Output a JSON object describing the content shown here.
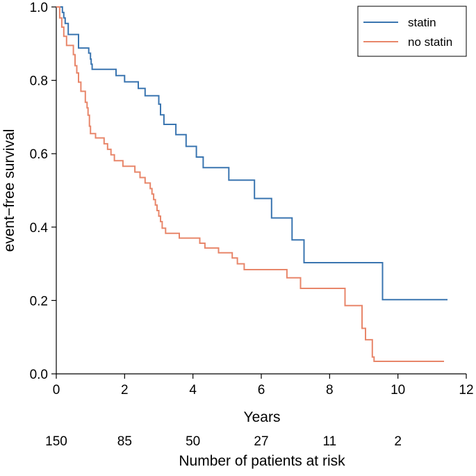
{
  "chart_data": {
    "type": "line",
    "subtype": "kaplan-meier step",
    "xlabel": "Years",
    "ylabel": "event−free survival",
    "xlim": [
      0,
      12
    ],
    "ylim": [
      0,
      1
    ],
    "xticks": [
      "0",
      "2",
      "4",
      "6",
      "8",
      "10",
      "12"
    ],
    "yticks": [
      "0.0",
      "0.2",
      "0.4",
      "0.6",
      "0.8",
      "1.0"
    ],
    "grid": false,
    "legend_position": "top-right",
    "series": [
      {
        "name": "statin",
        "color": "#3a75b0",
        "steps": [
          [
            0,
            1.0
          ],
          [
            0.18,
            0.985
          ],
          [
            0.22,
            0.97
          ],
          [
            0.26,
            0.955
          ],
          [
            0.35,
            0.925
          ],
          [
            0.65,
            0.888
          ],
          [
            0.95,
            0.874
          ],
          [
            1.0,
            0.858
          ],
          [
            1.02,
            0.844
          ],
          [
            1.05,
            0.83
          ],
          [
            1.75,
            0.813
          ],
          [
            2.0,
            0.796
          ],
          [
            2.4,
            0.778
          ],
          [
            2.6,
            0.758
          ],
          [
            3.0,
            0.735
          ],
          [
            3.05,
            0.706
          ],
          [
            3.15,
            0.68
          ],
          [
            3.5,
            0.652
          ],
          [
            3.8,
            0.62
          ],
          [
            4.1,
            0.591
          ],
          [
            4.3,
            0.562
          ],
          [
            5.05,
            0.528
          ],
          [
            5.8,
            0.478
          ],
          [
            6.3,
            0.425
          ],
          [
            6.9,
            0.365
          ],
          [
            7.25,
            0.303
          ],
          [
            9.55,
            0.202
          ],
          [
            11.45,
            0.202
          ]
        ]
      },
      {
        "name": "no statin",
        "color": "#e8866a",
        "steps": [
          [
            0,
            1.0
          ],
          [
            0.1,
            0.97
          ],
          [
            0.16,
            0.945
          ],
          [
            0.22,
            0.92
          ],
          [
            0.3,
            0.895
          ],
          [
            0.5,
            0.87
          ],
          [
            0.55,
            0.84
          ],
          [
            0.6,
            0.82
          ],
          [
            0.65,
            0.795
          ],
          [
            0.72,
            0.77
          ],
          [
            0.85,
            0.74
          ],
          [
            0.9,
            0.725
          ],
          [
            0.93,
            0.705
          ],
          [
            0.97,
            0.675
          ],
          [
            1.0,
            0.655
          ],
          [
            1.15,
            0.643
          ],
          [
            1.4,
            0.627
          ],
          [
            1.5,
            0.612
          ],
          [
            1.6,
            0.597
          ],
          [
            1.7,
            0.581
          ],
          [
            1.95,
            0.566
          ],
          [
            2.3,
            0.55
          ],
          [
            2.45,
            0.535
          ],
          [
            2.6,
            0.52
          ],
          [
            2.75,
            0.505
          ],
          [
            2.8,
            0.49
          ],
          [
            2.85,
            0.475
          ],
          [
            2.9,
            0.46
          ],
          [
            2.95,
            0.445
          ],
          [
            3.0,
            0.43
          ],
          [
            3.05,
            0.415
          ],
          [
            3.1,
            0.397
          ],
          [
            3.2,
            0.383
          ],
          [
            3.6,
            0.37
          ],
          [
            4.2,
            0.356
          ],
          [
            4.35,
            0.343
          ],
          [
            4.75,
            0.33
          ],
          [
            5.15,
            0.316
          ],
          [
            5.3,
            0.3
          ],
          [
            5.5,
            0.284
          ],
          [
            6.75,
            0.262
          ],
          [
            7.15,
            0.233
          ],
          [
            8.45,
            0.186
          ],
          [
            8.95,
            0.124
          ],
          [
            9.05,
            0.093
          ],
          [
            9.25,
            0.046
          ],
          [
            9.3,
            0.034
          ],
          [
            11.35,
            0.034
          ]
        ]
      }
    ],
    "risk_table": {
      "title": "Number of patients at risk",
      "x": [
        0,
        2,
        4,
        6,
        8,
        10
      ],
      "counts": [
        "150",
        "85",
        "50",
        "27",
        "11",
        "2"
      ]
    }
  }
}
